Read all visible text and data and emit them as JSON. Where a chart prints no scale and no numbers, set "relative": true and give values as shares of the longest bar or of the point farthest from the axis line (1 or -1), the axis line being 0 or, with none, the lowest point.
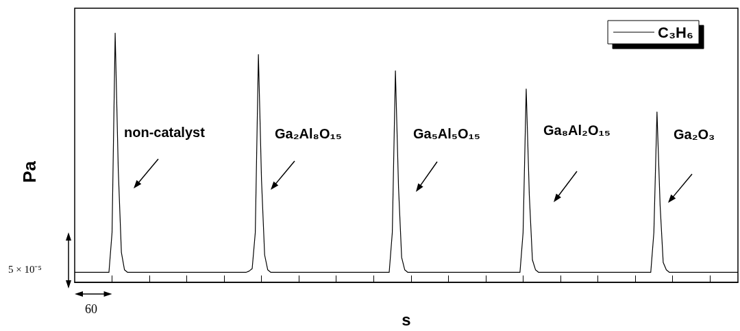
{
  "chart_data": {
    "type": "line",
    "relative": true,
    "xlabel": "s",
    "ylabel": "Pa",
    "legend": "top right",
    "grid": false,
    "marker": "none",
    "line_style": "solid",
    "categories": [
      null,
      null,
      null,
      null,
      null,
      null,
      null,
      null,
      null,
      null,
      null,
      null,
      null,
      null,
      null,
      null,
      null,
      null,
      null,
      null,
      null,
      null,
      null,
      null,
      null,
      null,
      null,
      null,
      null,
      null,
      null,
      null,
      null,
      null,
      null,
      null,
      null,
      null,
      null,
      null,
      null,
      null,
      null,
      null,
      null,
      null,
      null,
      null,
      null,
      null,
      null,
      null,
      null,
      null,
      null,
      null,
      null,
      null,
      null,
      null,
      null,
      null,
      null,
      null,
      null,
      null,
      null,
      null,
      null,
      null,
      null,
      null,
      null,
      null,
      null,
      null,
      null,
      null,
      null,
      null,
      null,
      null,
      null,
      null,
      null,
      null,
      null,
      null,
      null,
      null,
      null,
      null,
      null,
      null,
      null,
      null,
      null,
      null,
      null,
      null,
      null,
      null,
      null,
      null,
      null,
      null,
      null,
      null,
      null,
      null,
      null,
      null,
      null,
      null,
      null,
      null,
      null,
      null,
      null,
      null,
      null,
      null,
      null,
      null,
      null,
      null,
      null,
      null,
      null,
      null,
      null,
      null,
      null,
      null,
      null,
      null,
      null,
      null,
      null,
      null,
      null,
      null,
      null,
      null,
      null,
      null,
      null,
      null,
      null,
      null,
      null,
      null,
      null,
      null,
      null,
      null,
      null,
      null,
      null,
      null,
      null,
      null,
      null,
      null,
      null,
      null,
      null,
      null,
      null,
      null,
      null,
      null,
      null,
      null,
      null,
      null,
      null,
      null,
      null,
      null,
      null,
      null,
      null,
      null,
      null,
      null,
      null,
      null,
      null,
      null,
      null,
      null,
      null,
      null,
      null,
      null,
      null,
      null,
      null,
      null,
      null,
      null,
      null,
      null,
      null,
      null,
      null,
      null,
      null,
      null,
      null,
      null,
      null,
      null
    ],
    "series": [
      {
        "name": "C₃H₆",
        "color": "#000000",
        "values": [
          0.04,
          0.04,
          0.04,
          0.04,
          0.04,
          0.04,
          0.04,
          0.04,
          0.04,
          0.04,
          0.04,
          0.04,
          0.2,
          1,
          0.45,
          0.12,
          0.05,
          0.04,
          0.04,
          0.04,
          0.04,
          0.04,
          0.04,
          0.04,
          0.04,
          0.04,
          0.04,
          0.04,
          0.04,
          0.04,
          0.04,
          0.04,
          0.04,
          0.04,
          0.04,
          0.04,
          0.04,
          0.04,
          0.04,
          0.04,
          0.04,
          0.04,
          0.04,
          0.04,
          0.04,
          0.04,
          0.04,
          0.04,
          0.04,
          0.04,
          0.04,
          0.04,
          0.04,
          0.04,
          0.04,
          0.04,
          0.045,
          0.055,
          0.2,
          0.914,
          0.41,
          0.11,
          0.05,
          0.04,
          0.04,
          0.04,
          0.04,
          0.04,
          0.04,
          0.04,
          0.04,
          0.04,
          0.04,
          0.04,
          0.04,
          0.04,
          0.04,
          0.04,
          0.04,
          0.04,
          0.04,
          0.04,
          0.04,
          0.04,
          0.04,
          0.04,
          0.04,
          0.04,
          0.04,
          0.04,
          0.04,
          0.04,
          0.04,
          0.04,
          0.04,
          0.04,
          0.04,
          0.04,
          0.04,
          0.04,
          0.04,
          0.04,
          0.2,
          0.849,
          0.38,
          0.1,
          0.05,
          0.04,
          0.04,
          0.04,
          0.04,
          0.04,
          0.04,
          0.04,
          0.04,
          0.04,
          0.04,
          0.04,
          0.04,
          0.04,
          0.04,
          0.04,
          0.04,
          0.04,
          0.04,
          0.04,
          0.04,
          0.04,
          0.04,
          0.04,
          0.04,
          0.04,
          0.04,
          0.04,
          0.04,
          0.04,
          0.04,
          0.04,
          0.04,
          0.04,
          0.04,
          0.04,
          0.04,
          0.04,
          0.2,
          0.776,
          0.35,
          0.09,
          0.05,
          0.04,
          0.04,
          0.04,
          0.04,
          0.04,
          0.04,
          0.04,
          0.04,
          0.04,
          0.04,
          0.04,
          0.04,
          0.04,
          0.04,
          0.04,
          0.04,
          0.04,
          0.04,
          0.04,
          0.04,
          0.04,
          0.04,
          0.04,
          0.04,
          0.04,
          0.04,
          0.04,
          0.04,
          0.04,
          0.04,
          0.04,
          0.04,
          0.04,
          0.04,
          0.04,
          0.04,
          0.04,
          0.2,
          0.684,
          0.31,
          0.08,
          0.05,
          0.04,
          0.04,
          0.04,
          0.04,
          0.04,
          0.04,
          0.04,
          0.04,
          0.04,
          0.04,
          0.04,
          0.04,
          0.04,
          0.04,
          0.04,
          0.04,
          0.04,
          0.04,
          0.04,
          0.04,
          0.04,
          0.04,
          0.04
        ]
      }
    ],
    "annotations": [
      "non-catalyst",
      "Ga₂Al₈O₁₅",
      "Ga₅Al₅O₁₅",
      "Ga₈Al₂O₁₅",
      "Ga₂O₃",
      "5 × 10⁻⁵",
      "60"
    ]
  }
}
